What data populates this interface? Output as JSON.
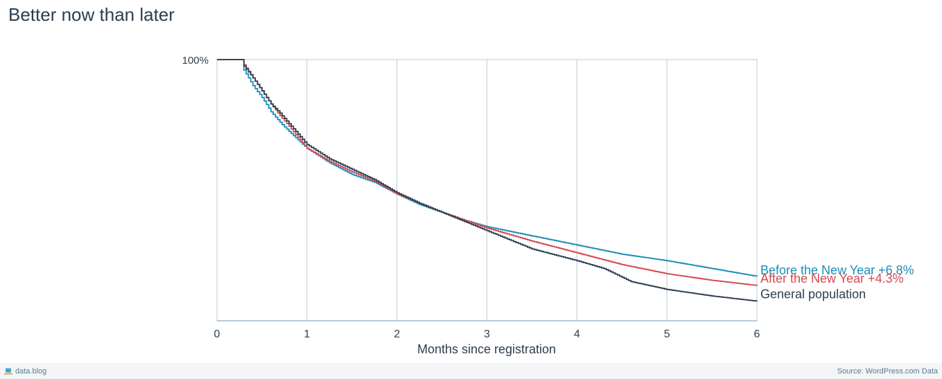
{
  "title": "Better now than later",
  "footer": {
    "brand": "data.blog",
    "source": "Source: WordPress.com Data"
  },
  "chart_data": {
    "type": "line",
    "title": "Better now than later",
    "xlabel": "Months since registration",
    "ylabel": "",
    "xlim": [
      0,
      6
    ],
    "ylim": [
      0,
      100
    ],
    "x_ticks": [
      "0",
      "1",
      "2",
      "3",
      "4",
      "5",
      "6"
    ],
    "y_ticks": [
      {
        "value": 100,
        "label": "100%"
      }
    ],
    "grid": "vertical",
    "legend": "direct labels at right end of lines",
    "series": [
      {
        "name": "Before the New Year",
        "label_suffix": "+6.8%",
        "color": "#1a8db8",
        "x": [
          0,
          0.27,
          0.3,
          0.4,
          0.5,
          0.6,
          0.7,
          0.8,
          1.0,
          1.25,
          1.5,
          1.75,
          2.0,
          2.25,
          2.5,
          2.75,
          3.0,
          3.5,
          4.0,
          4.5,
          5.0,
          5.5,
          6.0
        ],
        "y": [
          100,
          100,
          96,
          90,
          85.5,
          80,
          76,
          72.5,
          66,
          60.5,
          56,
          53,
          48.5,
          44.5,
          41.5,
          38.5,
          36,
          32.5,
          29,
          25.5,
          23,
          20,
          17
        ]
      },
      {
        "name": "After the New Year",
        "label_suffix": "+4.3%",
        "color": "#d44a4f",
        "x": [
          0,
          0.27,
          0.3,
          0.4,
          0.5,
          0.6,
          0.7,
          0.8,
          1.0,
          1.25,
          1.5,
          1.75,
          2.0,
          2.25,
          2.5,
          2.75,
          3.0,
          3.5,
          4.0,
          4.5,
          5.0,
          5.5,
          6.0
        ],
        "y": [
          100,
          100,
          98,
          93,
          88,
          83,
          78.5,
          74.5,
          66,
          61,
          57,
          53.5,
          48.5,
          45,
          41.5,
          38.5,
          35.5,
          30.5,
          26,
          21.5,
          18,
          15.5,
          13.5
        ]
      },
      {
        "name": "General population",
        "label_suffix": "",
        "color": "#2c3e50",
        "x": [
          0,
          0.27,
          0.3,
          0.4,
          0.5,
          0.6,
          0.7,
          0.8,
          1.0,
          1.25,
          1.5,
          1.75,
          2.0,
          2.25,
          2.5,
          2.75,
          3.0,
          3.5,
          4.0,
          4.3,
          4.6,
          5.0,
          5.5,
          6.0
        ],
        "y": [
          100,
          100,
          97.5,
          93,
          88,
          83,
          79.5,
          75.5,
          67.5,
          62,
          58,
          54,
          49,
          45,
          41.5,
          38,
          34.5,
          27.5,
          23,
          20,
          15,
          12,
          9.5,
          7.5
        ]
      }
    ]
  }
}
